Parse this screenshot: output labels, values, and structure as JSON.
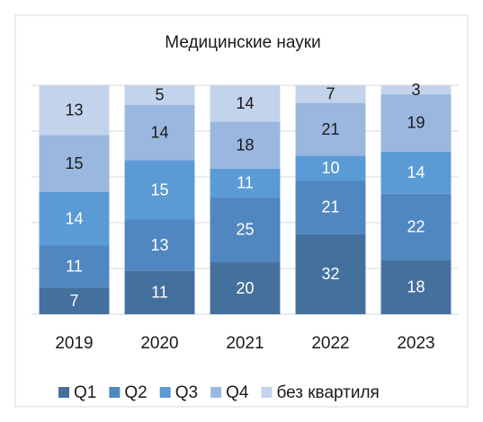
{
  "chart_data": {
    "type": "bar",
    "stacked": "percent",
    "title": "Медицинские науки",
    "categories": [
      "2019",
      "2020",
      "2021",
      "2022",
      "2023"
    ],
    "series": [
      {
        "name": "Q1",
        "color": "#44709d",
        "values": [
          7,
          11,
          20,
          32,
          18
        ]
      },
      {
        "name": "Q2",
        "color": "#5187c0",
        "values": [
          11,
          13,
          25,
          21,
          22
        ]
      },
      {
        "name": "Q3",
        "color": "#5b9bd5",
        "values": [
          14,
          15,
          11,
          10,
          14
        ]
      },
      {
        "name": "Q4",
        "color": "#9ab7df",
        "values": [
          15,
          14,
          18,
          21,
          19
        ]
      },
      {
        "name": "без квартиля",
        "color": "#c3d3ec",
        "values": [
          13,
          5,
          14,
          7,
          3
        ]
      }
    ],
    "ylim": [
      0,
      100
    ],
    "yticks": [
      0,
      20,
      40,
      60,
      80,
      100
    ],
    "grid": true,
    "legend": "bottom"
  }
}
